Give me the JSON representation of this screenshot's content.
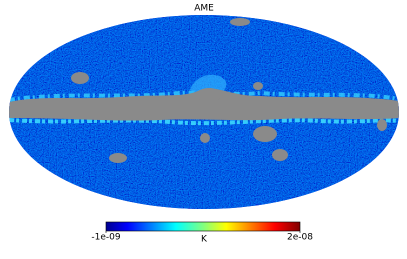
{
  "title": "AME",
  "colorbar": {
    "unit": "K",
    "range": [
      -1e-09,
      2e-08
    ],
    "ticks": [
      {
        "value": -1e-09,
        "label": "-1e-09"
      },
      {
        "value": 2e-08,
        "label": "2e-08"
      }
    ]
  }
}
